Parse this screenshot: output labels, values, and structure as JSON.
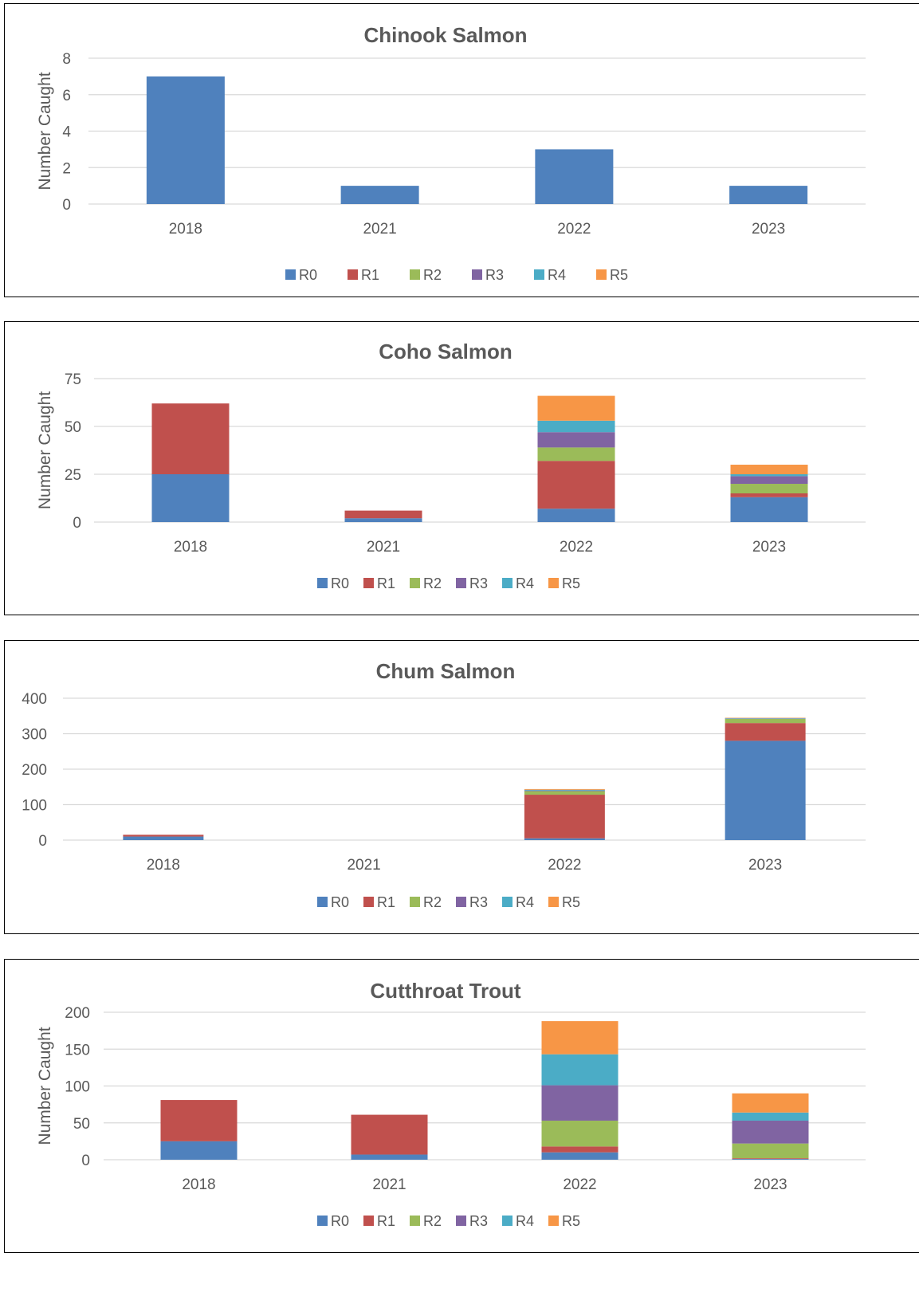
{
  "chart_data": [
    {
      "type": "bar",
      "stacked": true,
      "title": "Chinook Salmon",
      "ylabel": "Number Caught",
      "xlabel": "",
      "categories": [
        "2018",
        "2021",
        "2022",
        "2023"
      ],
      "ylim": [
        0,
        8
      ],
      "yticks": [
        0,
        2,
        4,
        6,
        8
      ],
      "grid": true,
      "legend_position": "bottom",
      "series": [
        {
          "name": "R0",
          "color": "#4F81BD",
          "values": [
            7,
            1,
            3,
            1
          ]
        },
        {
          "name": "R1",
          "color": "#C0504D",
          "values": [
            0,
            0,
            0,
            0
          ]
        },
        {
          "name": "R2",
          "color": "#9BBB59",
          "values": [
            0,
            0,
            0,
            0
          ]
        },
        {
          "name": "R3",
          "color": "#8064A2",
          "values": [
            0,
            0,
            0,
            0
          ]
        },
        {
          "name": "R4",
          "color": "#4BACC6",
          "values": [
            0,
            0,
            0,
            0
          ]
        },
        {
          "name": "R5",
          "color": "#F79646",
          "values": [
            0,
            0,
            0,
            0
          ]
        }
      ]
    },
    {
      "type": "bar",
      "stacked": true,
      "title": "Coho Salmon",
      "ylabel": "Number Caught",
      "xlabel": "",
      "categories": [
        "2018",
        "2021",
        "2022",
        "2023"
      ],
      "ylim": [
        0,
        75
      ],
      "yticks": [
        0,
        25,
        50,
        75
      ],
      "grid": true,
      "legend_position": "bottom",
      "series": [
        {
          "name": "R0",
          "color": "#4F81BD",
          "values": [
            25,
            2,
            7,
            13
          ]
        },
        {
          "name": "R1",
          "color": "#C0504D",
          "values": [
            37,
            4,
            25,
            2
          ]
        },
        {
          "name": "R2",
          "color": "#9BBB59",
          "values": [
            0,
            0,
            7,
            5
          ]
        },
        {
          "name": "R3",
          "color": "#8064A2",
          "values": [
            0,
            0,
            8,
            4
          ]
        },
        {
          "name": "R4",
          "color": "#4BACC6",
          "values": [
            0,
            0,
            6,
            1
          ]
        },
        {
          "name": "R5",
          "color": "#F79646",
          "values": [
            0,
            0,
            13,
            5
          ]
        }
      ]
    },
    {
      "type": "bar",
      "stacked": true,
      "title": "Chum Salmon",
      "ylabel": "",
      "xlabel": "",
      "categories": [
        "2018",
        "2021",
        "2022",
        "2023"
      ],
      "ylim": [
        0,
        400
      ],
      "yticks": [
        0,
        100,
        200,
        300,
        400
      ],
      "grid": true,
      "legend_position": "bottom",
      "series": [
        {
          "name": "R0",
          "color": "#4F81BD",
          "values": [
            10,
            0,
            5,
            280
          ]
        },
        {
          "name": "R1",
          "color": "#C0504D",
          "values": [
            5,
            0,
            123,
            50
          ]
        },
        {
          "name": "R2",
          "color": "#9BBB59",
          "values": [
            0,
            0,
            10,
            12
          ]
        },
        {
          "name": "R3",
          "color": "#8064A2",
          "values": [
            0,
            0,
            2,
            1
          ]
        },
        {
          "name": "R4",
          "color": "#4BACC6",
          "values": [
            0,
            0,
            2,
            1
          ]
        },
        {
          "name": "R5",
          "color": "#F79646",
          "values": [
            0,
            0,
            2,
            1
          ]
        }
      ]
    },
    {
      "type": "bar",
      "stacked": true,
      "title": "Cutthroat Trout",
      "ylabel": "Number Caught",
      "xlabel": "",
      "categories": [
        "2018",
        "2021",
        "2022",
        "2023"
      ],
      "ylim": [
        0,
        200
      ],
      "yticks": [
        0,
        50,
        100,
        150,
        200
      ],
      "grid": true,
      "legend_position": "bottom",
      "series": [
        {
          "name": "R0",
          "color": "#4F81BD",
          "values": [
            25,
            7,
            10,
            1
          ]
        },
        {
          "name": "R1",
          "color": "#C0504D",
          "values": [
            56,
            54,
            8,
            1
          ]
        },
        {
          "name": "R2",
          "color": "#9BBB59",
          "values": [
            0,
            0,
            35,
            20
          ]
        },
        {
          "name": "R3",
          "color": "#8064A2",
          "values": [
            0,
            0,
            48,
            31
          ]
        },
        {
          "name": "R4",
          "color": "#4BACC6",
          "values": [
            0,
            0,
            42,
            11
          ]
        },
        {
          "name": "R5",
          "color": "#F79646",
          "values": [
            0,
            0,
            45,
            26
          ]
        }
      ]
    }
  ]
}
